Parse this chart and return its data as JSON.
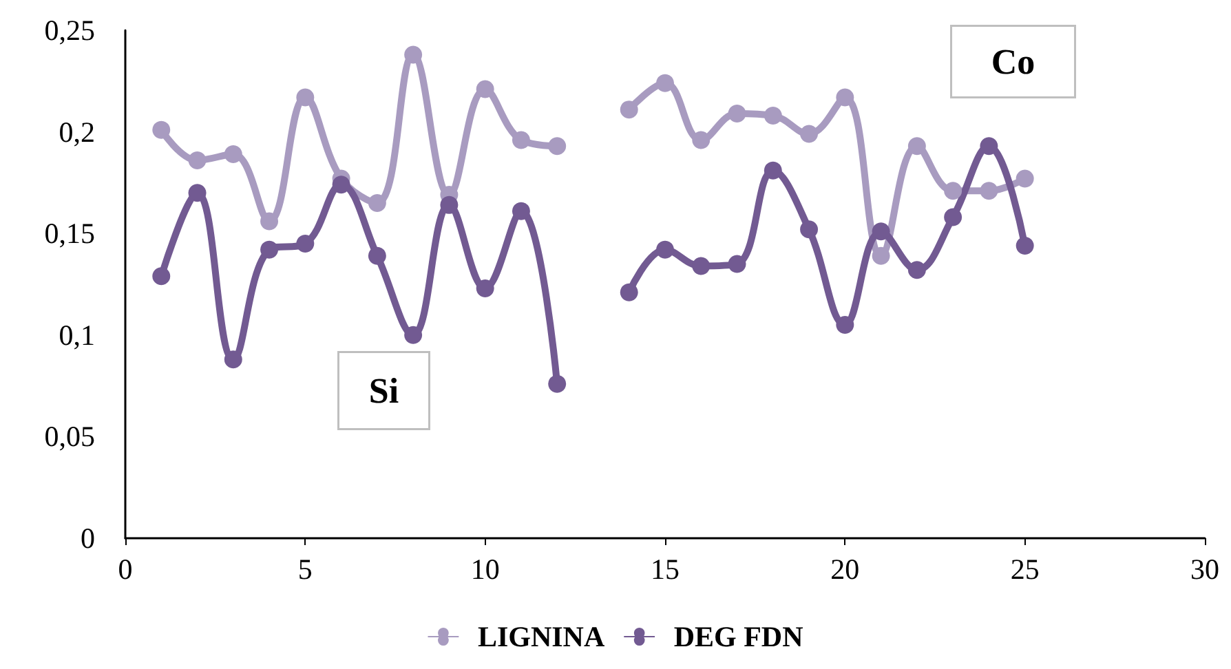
{
  "chart_data": {
    "type": "line",
    "x": [
      1,
      2,
      3,
      4,
      5,
      6,
      7,
      8,
      9,
      10,
      11,
      12,
      13,
      14,
      15,
      16,
      17,
      18,
      19,
      20,
      21,
      22,
      23,
      24,
      25
    ],
    "series": [
      {
        "name": "LIGNINA",
        "color": "#a89bc0",
        "values": [
          0.201,
          0.186,
          0.189,
          0.156,
          0.217,
          0.177,
          0.165,
          0.238,
          0.169,
          0.221,
          0.196,
          0.193,
          null,
          0.211,
          0.224,
          0.196,
          0.209,
          0.208,
          0.199,
          0.217,
          0.139,
          0.193,
          0.171,
          0.171,
          0.177
        ]
      },
      {
        "name": "DEG FDN",
        "color": "#725a92",
        "values": [
          0.129,
          0.17,
          0.088,
          0.142,
          0.145,
          0.174,
          0.139,
          0.1,
          0.164,
          0.123,
          0.161,
          0.076,
          null,
          0.121,
          0.142,
          0.134,
          0.135,
          0.181,
          0.152,
          0.105,
          0.151,
          0.132,
          0.158,
          0.193,
          0.144
        ]
      }
    ],
    "xlim": [
      0,
      30
    ],
    "xticks": [
      0,
      5,
      10,
      15,
      20,
      25,
      30
    ],
    "ylim": [
      0,
      0.25
    ],
    "yticks": [
      0,
      {
        "value": 0.05,
        "label": "0,05"
      },
      {
        "value": 0.1,
        "label": "0,1"
      },
      {
        "value": 0.15,
        "label": "0,15"
      },
      {
        "value": 0.2,
        "label": "0,2"
      },
      {
        "value": 0.25,
        "label": "0,25"
      }
    ],
    "annotations": [
      "Si",
      "Co"
    ],
    "legend": "bottom",
    "grid": false,
    "marker": "circle",
    "line_style": "solid"
  }
}
